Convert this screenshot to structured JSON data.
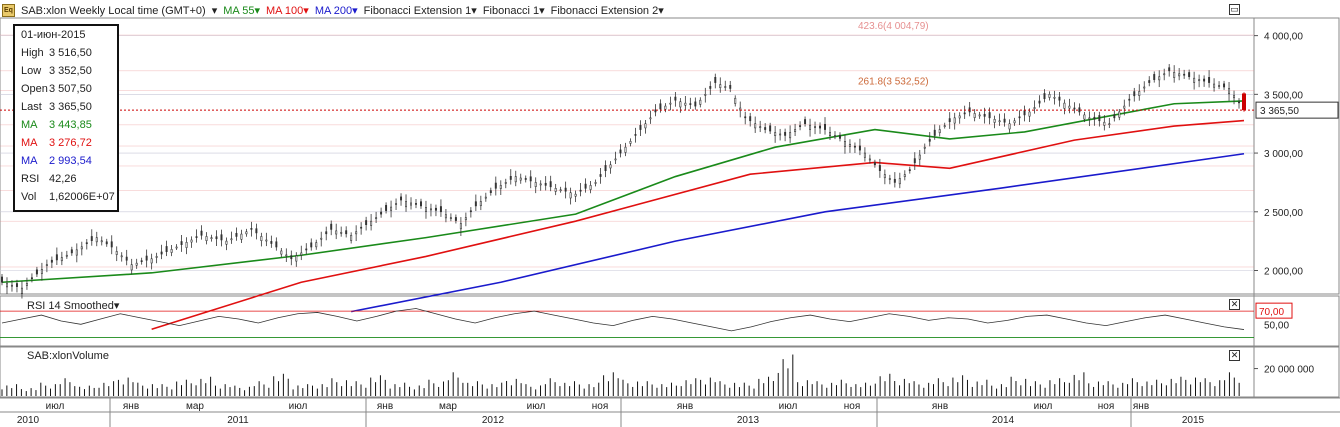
{
  "legend": {
    "app_icon": "chart-app-icon",
    "symbol": "SAB:xlon Weekly Local time (GMT+0)",
    "ma55": "MA 55",
    "ma100": "MA 100",
    "ma200": "MA 200",
    "fib_ext1": "Fibonacci Extension 1",
    "fib1": "Fibonacci 1",
    "fib_ext2": "Fibonacci Extension 2",
    "colors": {
      "ma55": "#1a8a1a",
      "ma100": "#e01010",
      "ma200": "#1a1acc"
    }
  },
  "data_window": {
    "date": "01-июн-2015",
    "rows": [
      {
        "label": "High",
        "value": "3 516,50",
        "color": "#222"
      },
      {
        "label": "Low",
        "value": "3 352,50",
        "color": "#222"
      },
      {
        "label": "Open",
        "value": "3 507,50",
        "color": "#222"
      },
      {
        "label": "Last",
        "value": "3 365,50",
        "color": "#222"
      },
      {
        "label": "MA",
        "value": "3 443,85",
        "color": "#1a8a1a"
      },
      {
        "label": "MA",
        "value": "3 276,72",
        "color": "#e01010"
      },
      {
        "label": "MA",
        "value": "2 993,54",
        "color": "#1a1acc"
      },
      {
        "label": "RSI",
        "value": "42,26",
        "color": "#222"
      },
      {
        "label": "Vol",
        "value": "1,62006E+07",
        "color": "#222"
      }
    ]
  },
  "rsi_pane": {
    "title": "RSI 14 Smoothed",
    "level_label": "70,00",
    "tick": "50,00"
  },
  "volume_pane": {
    "title": "SAB:xlonVolume",
    "tick": "20 000 000"
  },
  "fib_labels": {
    "ext_423": "423.6(4 004,79)",
    "ext_261": "261.8(3 532,52)"
  },
  "last_price_tag": "3 365,50",
  "chart_data": {
    "type": "candlestick",
    "title": "SAB:xlon Weekly Local time (GMT+0)",
    "y_ticks": [
      "4 000,00",
      "3 500,00",
      "3 000,00",
      "2 500,00",
      "2 000,00"
    ],
    "y_tick_values": [
      4000,
      3500,
      3000,
      2500,
      2000
    ],
    "ylim": [
      1800,
      4150
    ],
    "x_month_labels": [
      "июл",
      "янв",
      "мар",
      "июл",
      "янв",
      "мар",
      "июл",
      "ноя",
      "янв",
      "июл",
      "ноя",
      "янв",
      "июл",
      "ноя",
      "янв"
    ],
    "x_year_labels": [
      "2010",
      "2011",
      "2012",
      "2013",
      "2014",
      "2015"
    ],
    "last_candle": {
      "date": "01-июн-2015",
      "open": 3507.5,
      "high": 3516.5,
      "low": 3352.5,
      "close": 3365.5
    },
    "close_path": [
      [
        0,
        1900
      ],
      [
        8,
        1850
      ],
      [
        18,
        2050
      ],
      [
        28,
        2150
      ],
      [
        38,
        2280
      ],
      [
        44,
        2200
      ],
      [
        52,
        2050
      ],
      [
        60,
        2100
      ],
      [
        70,
        2200
      ],
      [
        80,
        2300
      ],
      [
        90,
        2250
      ],
      [
        100,
        2350
      ],
      [
        110,
        2200
      ],
      [
        116,
        2100
      ],
      [
        124,
        2200
      ],
      [
        132,
        2350
      ],
      [
        140,
        2300
      ],
      [
        150,
        2450
      ],
      [
        160,
        2600
      ],
      [
        168,
        2550
      ],
      [
        176,
        2500
      ],
      [
        184,
        2400
      ],
      [
        190,
        2550
      ],
      [
        198,
        2700
      ],
      [
        206,
        2800
      ],
      [
        214,
        2750
      ],
      [
        222,
        2700
      ],
      [
        230,
        2650
      ],
      [
        238,
        2750
      ],
      [
        246,
        2950
      ],
      [
        254,
        3150
      ],
      [
        262,
        3350
      ],
      [
        270,
        3450
      ],
      [
        278,
        3400
      ],
      [
        286,
        3600
      ],
      [
        292,
        3550
      ],
      [
        298,
        3300
      ],
      [
        306,
        3200
      ],
      [
        314,
        3150
      ],
      [
        322,
        3250
      ],
      [
        330,
        3200
      ],
      [
        338,
        3100
      ],
      [
        346,
        3000
      ],
      [
        352,
        2850
      ],
      [
        358,
        2750
      ],
      [
        364,
        2850
      ],
      [
        370,
        3050
      ],
      [
        376,
        3200
      ],
      [
        382,
        3300
      ],
      [
        388,
        3350
      ],
      [
        396,
        3300
      ],
      [
        404,
        3250
      ],
      [
        412,
        3350
      ],
      [
        420,
        3500
      ],
      [
        428,
        3400
      ],
      [
        436,
        3300
      ],
      [
        444,
        3250
      ],
      [
        452,
        3450
      ],
      [
        460,
        3600
      ],
      [
        468,
        3700
      ],
      [
        476,
        3650
      ],
      [
        484,
        3600
      ],
      [
        492,
        3550
      ],
      [
        498,
        3366
      ]
    ],
    "ma55_path": [
      [
        0,
        1900
      ],
      [
        60,
        1980
      ],
      [
        120,
        2130
      ],
      [
        170,
        2280
      ],
      [
        230,
        2480
      ],
      [
        270,
        2800
      ],
      [
        310,
        3050
      ],
      [
        350,
        3200
      ],
      [
        380,
        3120
      ],
      [
        410,
        3180
      ],
      [
        440,
        3300
      ],
      [
        470,
        3420
      ],
      [
        498,
        3444
      ]
    ],
    "ma100_path": [
      [
        60,
        1500
      ],
      [
        120,
        1900
      ],
      [
        170,
        2120
      ],
      [
        230,
        2420
      ],
      [
        300,
        2820
      ],
      [
        350,
        2920
      ],
      [
        380,
        2870
      ],
      [
        430,
        3110
      ],
      [
        470,
        3230
      ],
      [
        498,
        3277
      ]
    ],
    "ma200_path": [
      [
        140,
        1650
      ],
      [
        200,
        1900
      ],
      [
        270,
        2250
      ],
      [
        330,
        2500
      ],
      [
        400,
        2700
      ],
      [
        498,
        2994
      ]
    ],
    "rsi": {
      "level": 70,
      "ylim": [
        20,
        90
      ],
      "values": [
        52,
        58,
        64,
        55,
        50,
        58,
        66,
        60,
        54,
        48,
        55,
        62,
        58,
        52,
        60,
        66,
        68,
        62,
        55,
        62,
        70,
        74,
        66,
        58,
        52,
        60,
        66,
        70,
        64,
        58,
        52,
        48,
        56,
        62,
        58,
        52,
        46,
        40,
        46,
        54,
        60,
        64,
        58,
        54,
        60,
        66,
        62,
        56,
        60,
        58,
        52,
        56,
        62,
        64,
        58,
        52,
        48,
        54,
        60,
        64,
        58,
        52,
        46,
        42
      ]
    },
    "volume": {
      "ylim": [
        0,
        35000000
      ],
      "values": [
        8,
        6,
        9,
        12,
        7,
        10,
        14,
        9,
        8,
        11,
        13,
        9,
        7,
        10,
        15,
        8,
        9,
        12,
        10,
        14,
        9,
        8,
        11,
        16,
        10,
        9,
        13,
        8,
        12,
        10,
        9,
        18,
        11,
        10,
        9,
        12,
        14,
        10,
        9,
        13,
        28,
        12,
        10,
        11,
        9,
        15,
        13,
        10,
        12,
        14,
        11,
        9,
        13,
        10,
        12,
        16,
        11,
        10,
        12,
        11,
        13,
        14,
        12,
        16
      ]
    }
  }
}
